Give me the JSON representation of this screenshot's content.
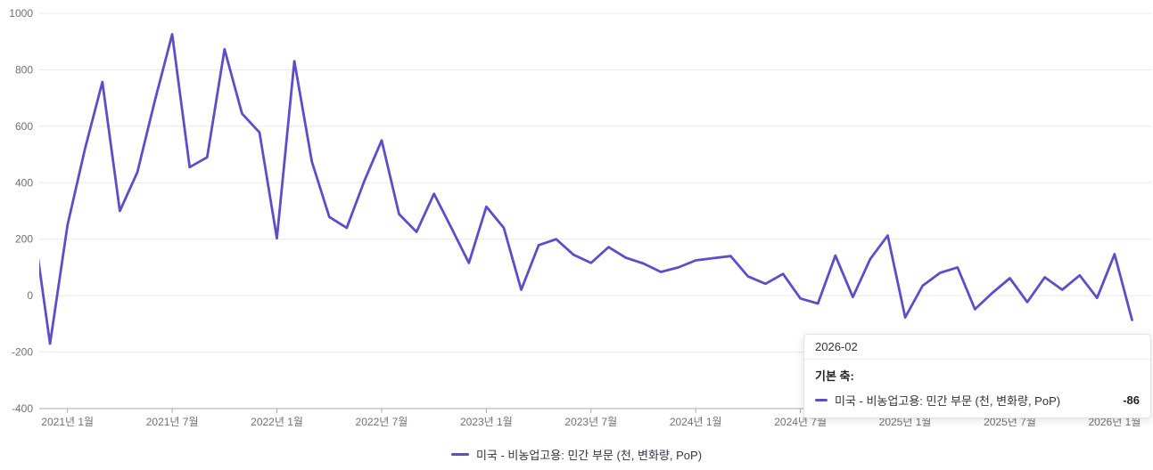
{
  "accent_color": "#5B4FC9",
  "axis_color": "#aaaaaa",
  "grid_color": "#e8e8ec",
  "axis_text_color": "#707070",
  "legend": {
    "label": "미국 - 비농업고용: 민간 부문 (천, 변화량, PoP)",
    "marker_color": "#5B4FC9"
  },
  "tooltip": {
    "title": "2026-02",
    "axis_label": "기본 축:",
    "series_name": "미국 - 비농업고용: 민간 부문 (천, 변화량, PoP)",
    "value": "-86",
    "marker_color": "#5B4FC9"
  },
  "chart_data": {
    "type": "line",
    "title": "",
    "xlabel": "",
    "ylabel": "",
    "ylim": [
      -400,
      1000
    ],
    "grid": "horizontal-only",
    "legend_position": "bottom-center",
    "line_color": "#5B4FC9",
    "categories": [
      "2020-11",
      "2020-12",
      "2021-01",
      "2021-02",
      "2021-03",
      "2021-04",
      "2021-05",
      "2021-06",
      "2021-07",
      "2021-08",
      "2021-09",
      "2021-10",
      "2021-11",
      "2021-12",
      "2022-01",
      "2022-02",
      "2022-03",
      "2022-04",
      "2022-05",
      "2022-06",
      "2022-07",
      "2022-08",
      "2022-09",
      "2022-10",
      "2022-11",
      "2022-12",
      "2023-01",
      "2023-02",
      "2023-03",
      "2023-04",
      "2023-05",
      "2023-06",
      "2023-07",
      "2023-08",
      "2023-09",
      "2023-10",
      "2023-11",
      "2023-12",
      "2024-01",
      "2024-02",
      "2024-03",
      "2024-04",
      "2024-05",
      "2024-06",
      "2024-07",
      "2024-08",
      "2024-09",
      "2024-10",
      "2024-11",
      "2024-12",
      "2025-01",
      "2025-02",
      "2025-03",
      "2025-04",
      "2025-05",
      "2025-06",
      "2025-07",
      "2025-08",
      "2025-09",
      "2025-10",
      "2025-11",
      "2025-12",
      "2026-01",
      "2026-02"
    ],
    "series": [
      {
        "name": "미국 - 비농업고용: 민간 부문 (천, 변화량, PoP)",
        "values": [
          270,
          -170,
          250,
          520,
          757,
          300,
          437,
          690,
          926,
          455,
          490,
          873,
          645,
          578,
          203,
          831,
          475,
          279,
          240,
          405,
          550,
          289,
          226,
          361,
          240,
          116,
          315,
          240,
          21,
          179,
          200,
          145,
          116,
          172,
          134,
          114,
          84,
          100,
          125,
          133,
          140,
          68,
          42,
          77,
          -10,
          -28,
          142,
          -5,
          130,
          213,
          -77,
          35,
          81,
          100,
          -48,
          10,
          62,
          -23,
          65,
          21,
          72,
          -8,
          147,
          -86
        ]
      }
    ],
    "y_ticks": [
      -400,
      -200,
      0,
      200,
      400,
      600,
      800,
      1000
    ],
    "x_ticks": [
      {
        "index": 2,
        "label": "2021년 1월"
      },
      {
        "index": 8,
        "label": "2021년 7월"
      },
      {
        "index": 14,
        "label": "2022년 1월"
      },
      {
        "index": 20,
        "label": "2022년 7월"
      },
      {
        "index": 26,
        "label": "2023년 1월"
      },
      {
        "index": 32,
        "label": "2023년 7월"
      },
      {
        "index": 38,
        "label": "2024년 1월"
      },
      {
        "index": 44,
        "label": "2024년 7월"
      },
      {
        "index": 50,
        "label": "2025년 1월"
      },
      {
        "index": 56,
        "label": "2025년 7월"
      },
      {
        "index": 62,
        "label": "2026년 1월"
      }
    ]
  }
}
